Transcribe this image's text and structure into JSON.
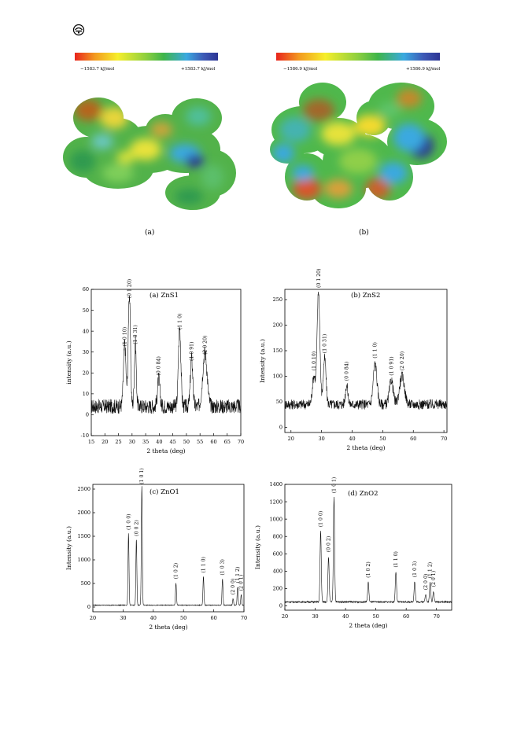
{
  "header_icon": "journal-logo-icon",
  "colorbars": [
    {
      "min_label": "−1583.7 kJ/mol",
      "max_label": "+1583.7 kJ/mol"
    },
    {
      "min_label": "−1586.9 kJ/mol",
      "max_label": "+1586.9 kJ/mol"
    }
  ],
  "mol_labels": [
    "(a)",
    "(b)"
  ],
  "colors": {
    "red": "#e8241d",
    "yellow": "#f6ee2b",
    "green": "#3fb54a",
    "cyan": "#3aa9e0",
    "blue": "#2c3493"
  },
  "chart_data": [
    {
      "type": "line",
      "title": "(a)  ZnS1",
      "xlabel": "2 theta (deg)",
      "ylabel": "intensity (a.u.)",
      "xlim": [
        15,
        70
      ],
      "ylim": [
        -10,
        60
      ],
      "xticks": [
        15,
        20,
        25,
        30,
        35,
        40,
        45,
        50,
        55,
        60,
        65,
        70
      ],
      "yticks": [
        -10,
        0,
        10,
        20,
        30,
        40,
        50,
        60
      ],
      "baseline": 4,
      "noise": 3.5,
      "peaks": [
        [
          27.3,
          30,
          0.45
        ],
        [
          29.0,
          54,
          0.4
        ],
        [
          31.2,
          31,
          0.35
        ],
        [
          39.8,
          13,
          0.45
        ],
        [
          47.5,
          38,
          0.45
        ],
        [
          51.9,
          23,
          0.45
        ],
        [
          56.8,
          26,
          0.8
        ]
      ],
      "annotations": [
        {
          "label": "(1 0 10)",
          "x": 27.3,
          "y": 32
        },
        {
          "label": "(0 1 20)",
          "x": 29.0,
          "y": 55
        },
        {
          "label": "(1 0 31)",
          "x": 31.2,
          "y": 33
        },
        {
          "label": "(0 0 84)",
          "x": 39.8,
          "y": 18
        },
        {
          "label": "(1 1 0)",
          "x": 47.5,
          "y": 40
        },
        {
          "label": "(1 0 91)",
          "x": 51.9,
          "y": 25
        },
        {
          "label": "(2 0 20)",
          "x": 56.8,
          "y": 28
        }
      ]
    },
    {
      "type": "line",
      "title": "(b)  ZnS2",
      "xlabel": "2 theta (deg)",
      "ylabel": "Intensity (a.u.)",
      "xlim": [
        18,
        71
      ],
      "ylim": [
        -10,
        270
      ],
      "xticks": [
        20,
        30,
        40,
        50,
        60,
        70
      ],
      "yticks": [
        0,
        50,
        100,
        150,
        200,
        250
      ],
      "baseline": 45,
      "noise": 10,
      "peaks": [
        [
          27.5,
          55,
          0.5
        ],
        [
          29.0,
          222,
          0.45
        ],
        [
          31.0,
          90,
          0.45
        ],
        [
          38.2,
          38,
          0.4
        ],
        [
          47.5,
          80,
          0.6
        ],
        [
          52.8,
          48,
          0.6
        ],
        [
          56.3,
          55,
          0.8
        ]
      ],
      "annotations": [
        {
          "label": "(1 0 10)",
          "x": 27.5,
          "y": 108
        },
        {
          "label": "(0 1 20)",
          "x": 29.0,
          "y": 270
        },
        {
          "label": "(1 0 31)",
          "x": 31.0,
          "y": 142
        },
        {
          "label": "(0 0 84)",
          "x": 38.2,
          "y": 88
        },
        {
          "label": "(1 1 0)",
          "x": 47.5,
          "y": 132
        },
        {
          "label": "(1 0 91)",
          "x": 52.8,
          "y": 98
        },
        {
          "label": "(2 0 20)",
          "x": 56.3,
          "y": 108
        }
      ]
    },
    {
      "type": "line",
      "title": "(c) ZnO1",
      "xlabel": "2 theta (deg)",
      "ylabel": "Intensity (a.u.)",
      "xlim": [
        20,
        70
      ],
      "ylim": [
        -100,
        2600
      ],
      "xticks": [
        20,
        30,
        40,
        50,
        60,
        70
      ],
      "yticks": [
        0,
        500,
        1000,
        1500,
        2000,
        2500
      ],
      "baseline": 40,
      "noise": 8,
      "peaks": [
        [
          31.8,
          1520,
          0.16
        ],
        [
          34.4,
          1400,
          0.16
        ],
        [
          36.2,
          2530,
          0.16
        ],
        [
          47.5,
          470,
          0.16
        ],
        [
          56.6,
          610,
          0.16
        ],
        [
          62.9,
          560,
          0.16
        ],
        [
          66.4,
          140,
          0.16
        ],
        [
          67.9,
          390,
          0.16
        ],
        [
          69.1,
          230,
          0.16
        ]
      ],
      "annotations": [
        {
          "label": "(1 0 0)",
          "x": 31.8,
          "y": 1600
        },
        {
          "label": "(0 0 2)",
          "x": 34.4,
          "y": 1470
        },
        {
          "label": "(1 0 1)",
          "x": 36.2,
          "y": 2570
        },
        {
          "label": "(1 0 2)",
          "x": 47.5,
          "y": 560
        },
        {
          "label": "(1 1 0)",
          "x": 56.6,
          "y": 690
        },
        {
          "label": "(1 0 3)",
          "x": 62.9,
          "y": 640
        },
        {
          "label": "(2 0 0)",
          "x": 66.4,
          "y": 230
        },
        {
          "label": "(1 1 2)",
          "x": 67.9,
          "y": 480
        },
        {
          "label": "(2 0 1)",
          "x": 69.1,
          "y": 310
        }
      ]
    },
    {
      "type": "line",
      "title": "(d) ZnO2",
      "xlabel": "2 theta (deg)",
      "ylabel": "Intensity (a.u.)",
      "xlim": [
        20,
        75
      ],
      "ylim": [
        -50,
        1400
      ],
      "xticks": [
        20,
        30,
        40,
        50,
        60,
        70
      ],
      "yticks": [
        0,
        200,
        400,
        600,
        800,
        1000,
        1200,
        1400
      ],
      "baseline": 45,
      "noise": 9,
      "peaks": [
        [
          31.8,
          820,
          0.2
        ],
        [
          34.4,
          520,
          0.2
        ],
        [
          36.2,
          1210,
          0.2
        ],
        [
          47.5,
          230,
          0.2
        ],
        [
          56.6,
          350,
          0.2
        ],
        [
          62.8,
          235,
          0.2
        ],
        [
          66.4,
          90,
          0.2
        ],
        [
          67.9,
          225,
          0.2
        ],
        [
          69.0,
          120,
          0.2
        ]
      ],
      "annotations": [
        {
          "label": "(1 0 0)",
          "x": 31.8,
          "y": 890
        },
        {
          "label": "(0 0 2)",
          "x": 34.4,
          "y": 600
        },
        {
          "label": "(1 0 1)",
          "x": 36.2,
          "y": 1280
        },
        {
          "label": "(1 0 2)",
          "x": 47.5,
          "y": 305
        },
        {
          "label": "(1 1 0)",
          "x": 56.6,
          "y": 425
        },
        {
          "label": "(1 0 3)",
          "x": 62.8,
          "y": 310
        },
        {
          "label": "(2 0 0)",
          "x": 66.4,
          "y": 165
        },
        {
          "label": "(1 1 2)",
          "x": 67.9,
          "y": 300
        },
        {
          "label": "(2 0 1)",
          "x": 69.0,
          "y": 200
        }
      ]
    }
  ]
}
